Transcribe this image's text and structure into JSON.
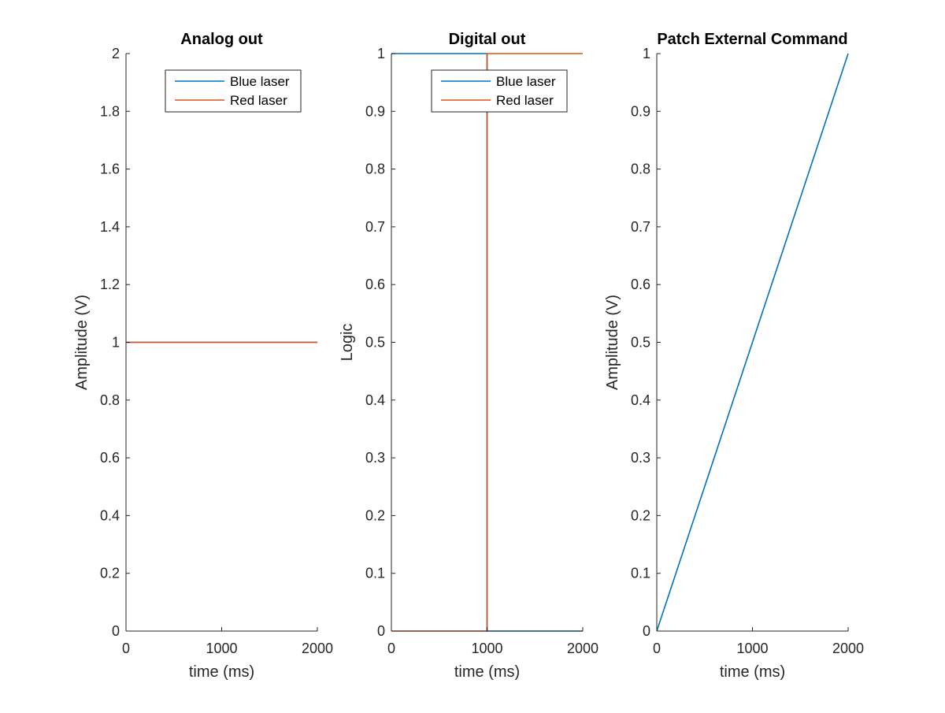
{
  "chart_data": [
    {
      "type": "line",
      "title": "Analog out",
      "xlabel": "time (ms)",
      "ylabel": "Amplitude (V)",
      "xlim": [
        0,
        2000
      ],
      "ylim": [
        0,
        2
      ],
      "xticks": [
        "0",
        "1000",
        "2000"
      ],
      "yticks": [
        "0",
        "0.2",
        "0.4",
        "0.6",
        "0.8",
        "1",
        "1.2",
        "1.4",
        "1.6",
        "1.8",
        "2"
      ],
      "grid": false,
      "legend": "top-right",
      "series": [
        {
          "name": "Blue laser",
          "color": "#0072BD",
          "x": [
            0,
            2000
          ],
          "y": [
            1,
            1
          ]
        },
        {
          "name": "Red laser",
          "color": "#D95319",
          "x": [
            0,
            2000
          ],
          "y": [
            1,
            1
          ]
        }
      ]
    },
    {
      "type": "line",
      "title": "Digital out",
      "xlabel": "time (ms)",
      "ylabel": "Logic",
      "xlim": [
        0,
        2000
      ],
      "ylim": [
        0,
        1
      ],
      "xticks": [
        "0",
        "1000",
        "2000"
      ],
      "yticks": [
        "0",
        "0.1",
        "0.2",
        "0.3",
        "0.4",
        "0.5",
        "0.6",
        "0.7",
        "0.8",
        "0.9",
        "1"
      ],
      "grid": false,
      "legend": "top-right",
      "series": [
        {
          "name": "Blue laser",
          "color": "#0072BD",
          "x": [
            0,
            1000,
            1000,
            2000
          ],
          "y": [
            1,
            1,
            0,
            0
          ]
        },
        {
          "name": "Red laser",
          "color": "#D95319",
          "x": [
            0,
            1000,
            1000,
            2000
          ],
          "y": [
            0,
            0,
            1,
            1
          ]
        }
      ]
    },
    {
      "type": "line",
      "title": "Patch External Command",
      "xlabel": "time (ms)",
      "ylabel": "Amplitude (V)",
      "xlim": [
        0,
        2000
      ],
      "ylim": [
        0,
        1
      ],
      "xticks": [
        "0",
        "1000",
        "2000"
      ],
      "yticks": [
        "0",
        "0.1",
        "0.2",
        "0.3",
        "0.4",
        "0.5",
        "0.6",
        "0.7",
        "0.8",
        "0.9",
        "1"
      ],
      "grid": false,
      "legend": "none",
      "series": [
        {
          "color": "#0072BD",
          "x": [
            0,
            2000
          ],
          "y": [
            0,
            1
          ]
        }
      ]
    }
  ]
}
